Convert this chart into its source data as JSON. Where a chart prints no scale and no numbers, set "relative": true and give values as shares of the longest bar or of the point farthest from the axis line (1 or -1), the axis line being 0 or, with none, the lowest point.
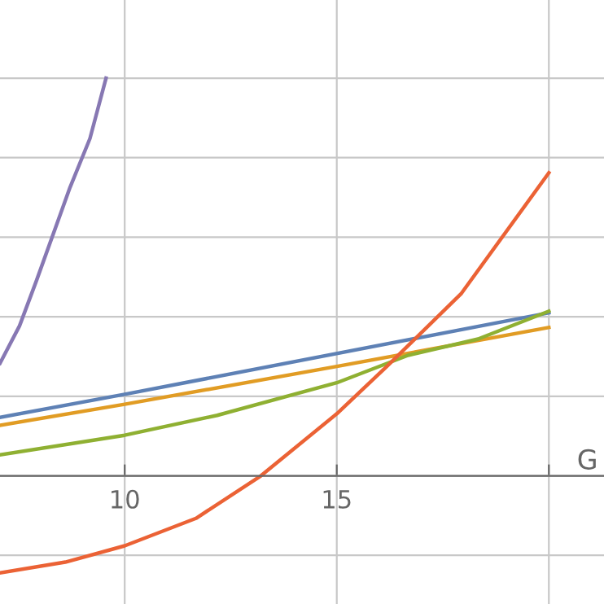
{
  "chart_data": {
    "type": "line",
    "relative": true,
    "xlabel": "G",
    "xlim": [
      7.06,
      21.3
    ],
    "xticks": [
      10,
      15,
      {
        "value": 20,
        "label": null
      }
    ],
    "grid": true,
    "series": [
      {
        "color": "#5e81b5",
        "x": [
          7.06,
          10,
          20
        ],
        "values": [
          0.147,
          0.205,
          0.41
        ]
      },
      {
        "color": "#e19c24",
        "x": [
          7.06,
          10,
          15,
          20
        ],
        "values": [
          0.127,
          0.18,
          0.275,
          0.373
        ]
      },
      {
        "color": "#8fb032",
        "x": [
          7.06,
          10,
          12.18,
          15,
          16.68,
          18.33,
          20
        ],
        "values": [
          0.053,
          0.102,
          0.152,
          0.234,
          0.303,
          0.344,
          0.414
        ]
      },
      {
        "color": "#eb6235",
        "x": [
          7.06,
          8.6,
          10,
          11.68,
          13.21,
          15,
          16.18,
          17.94,
          20
        ],
        "values": [
          -0.244,
          -0.217,
          -0.176,
          -0.107,
          0,
          0.156,
          0.275,
          0.459,
          0.762
        ]
      },
      {
        "color": "#8778b3",
        "x": [
          7.06,
          7.52,
          7.91,
          8.71,
          9.18,
          9.56
        ],
        "values": [
          0.283,
          0.377,
          0.488,
          0.725,
          0.848,
          1.0
        ]
      }
    ]
  }
}
